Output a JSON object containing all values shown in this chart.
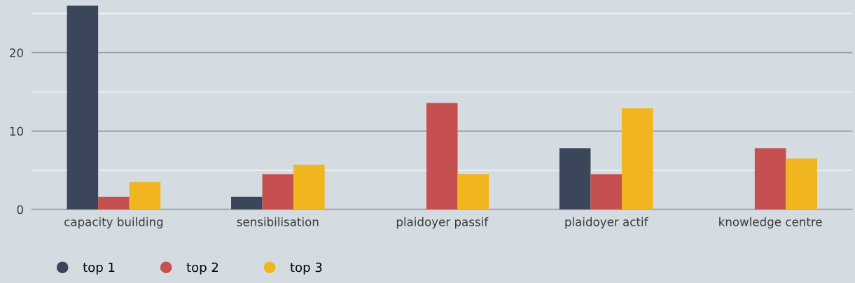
{
  "chart_data": {
    "type": "bar",
    "categories": [
      "capacity building",
      "sensibilisation",
      "plaidoyer passif",
      "plaidoyer actif",
      "knowledge centre"
    ],
    "series": [
      {
        "name": "top 1",
        "color": "#3b465a",
        "values": [
          26,
          1.6,
          0,
          7.8,
          0
        ]
      },
      {
        "name": "top 2",
        "color": "#c65050",
        "values": [
          1.6,
          4.5,
          13.6,
          4.5,
          7.8
        ]
      },
      {
        "name": "top 3",
        "color": "#f0b51f",
        "values": [
          3.5,
          5.7,
          4.5,
          12.9,
          6.5
        ]
      }
    ],
    "ylim": [
      0,
      26
    ],
    "yticks": [
      0,
      {
        "value": 5,
        "label": null
      },
      10,
      {
        "value": 15,
        "label": null
      },
      20,
      {
        "value": 25,
        "label": null
      }
    ],
    "grid": "y",
    "legend": "bottom left"
  }
}
